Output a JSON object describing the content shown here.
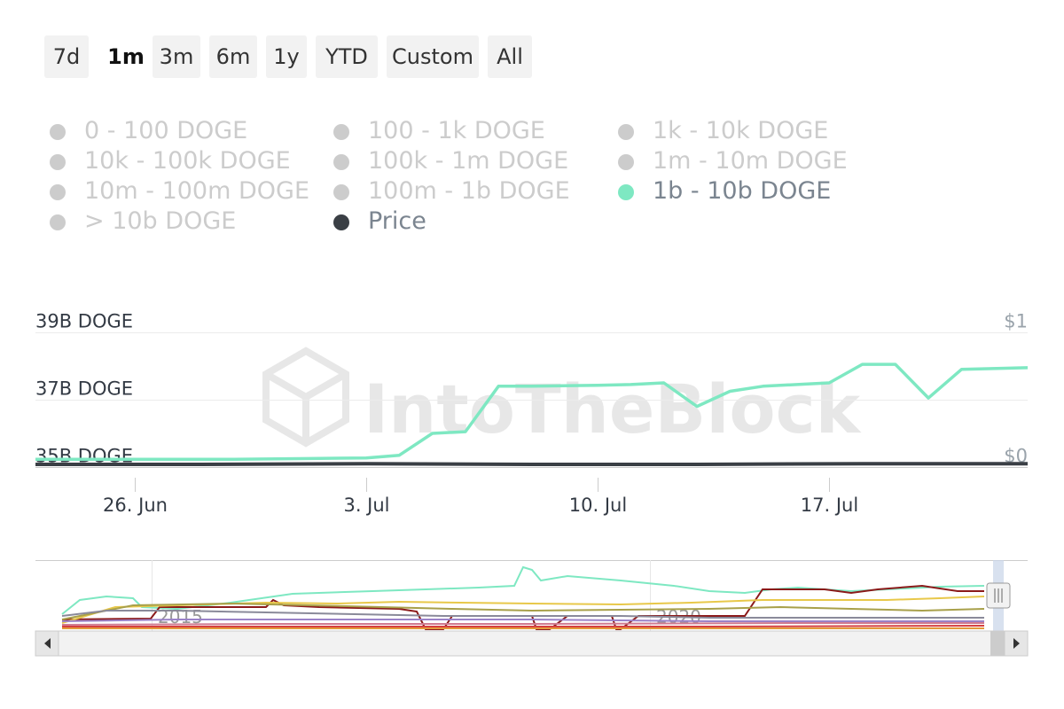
{
  "range_buttons": [
    {
      "label": "7d",
      "active": false
    },
    {
      "label": "1m",
      "active": true
    },
    {
      "label": "3m",
      "active": false
    },
    {
      "label": "6m",
      "active": false
    },
    {
      "label": "1y",
      "active": false
    },
    {
      "label": "YTD",
      "active": false
    },
    {
      "label": "Custom",
      "active": false
    },
    {
      "label": "All",
      "active": false
    }
  ],
  "legend": [
    {
      "label": "0 - 100 DOGE",
      "active": false
    },
    {
      "label": "100 - 1k DOGE",
      "active": false
    },
    {
      "label": "1k - 10k DOGE",
      "active": false
    },
    {
      "label": "10k - 100k DOGE",
      "active": false
    },
    {
      "label": "100k - 1m DOGE",
      "active": false
    },
    {
      "label": "1m - 10m DOGE",
      "active": false
    },
    {
      "label": "10m - 100m DOGE",
      "active": false
    },
    {
      "label": "100m - 1b DOGE",
      "active": false
    },
    {
      "label": "1b - 10b DOGE",
      "active": true,
      "color": "#7ee8c2"
    },
    {
      "label": "> 10b DOGE",
      "active": false
    },
    {
      "label": "Price",
      "active": true,
      "color": "#3a3f45"
    }
  ],
  "watermark": "IntoTheBlock",
  "chart_data": {
    "type": "line",
    "title": "",
    "y_axis_left": {
      "ticks": [
        "39B DOGE",
        "37B DOGE",
        "35B DOGE"
      ],
      "ylim": [
        35,
        39
      ],
      "unit": "B DOGE"
    },
    "y_axis_right": {
      "ticks": [
        "$1",
        "$0"
      ],
      "ylim": [
        0,
        1
      ]
    },
    "x_ticks": [
      "26. Jun",
      "3. Jul",
      "10. Jul",
      "17. Jul"
    ],
    "x_range": [
      "2021-06-23",
      "2021-07-23"
    ],
    "grid": true,
    "series": [
      {
        "name": "1b - 10b DOGE",
        "color": "#7ee8c2",
        "axis": "left",
        "points": [
          [
            "2021-06-23",
            35.23
          ],
          [
            "2021-06-26",
            35.23
          ],
          [
            "2021-06-29",
            35.23
          ],
          [
            "2021-07-01",
            35.25
          ],
          [
            "2021-07-03",
            35.27
          ],
          [
            "2021-07-04",
            35.35
          ],
          [
            "2021-07-05",
            36.0
          ],
          [
            "2021-07-06",
            36.05
          ],
          [
            "2021-07-07",
            37.4
          ],
          [
            "2021-07-08",
            37.4
          ],
          [
            "2021-07-10",
            37.43
          ],
          [
            "2021-07-11",
            37.45
          ],
          [
            "2021-07-12",
            37.5
          ],
          [
            "2021-07-13",
            36.8
          ],
          [
            "2021-07-14",
            37.25
          ],
          [
            "2021-07-15",
            37.4
          ],
          [
            "2021-07-17",
            37.5
          ],
          [
            "2021-07-18",
            38.05
          ],
          [
            "2021-07-19",
            38.05
          ],
          [
            "2021-07-20",
            37.05
          ],
          [
            "2021-07-21",
            37.9
          ],
          [
            "2021-07-23",
            37.95
          ]
        ]
      },
      {
        "name": "Price",
        "color": "#3a3f45",
        "axis": "right",
        "points": [
          [
            "2021-06-23",
            0.02
          ],
          [
            "2021-06-28",
            0.02
          ],
          [
            "2021-07-03",
            0.025
          ],
          [
            "2021-07-08",
            0.02
          ],
          [
            "2021-07-13",
            0.02
          ],
          [
            "2021-07-18",
            0.025
          ],
          [
            "2021-07-23",
            0.025
          ]
        ]
      }
    ],
    "navigator": {
      "year_labels": [
        "2015",
        "2020"
      ]
    }
  }
}
